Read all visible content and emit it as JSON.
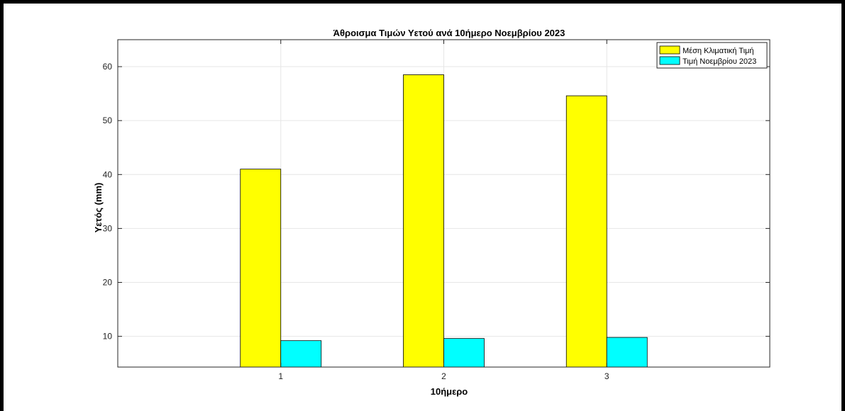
{
  "colors": {
    "series_1": "#ffff00",
    "series_2": "#00ffff",
    "bar_edge": "#000000",
    "grid": "#e6e6e6",
    "axis": "#262626"
  },
  "chart_data": {
    "type": "bar",
    "title": "Άθροισμα Τιμών Υετού ανά 10ήμερο Νοεμβρίου 2023",
    "xlabel": "10ήμερο",
    "ylabel": "Υετός (mm)",
    "categories": [
      "1",
      "2",
      "3"
    ],
    "series": [
      {
        "name": "Μέση Κλιματική Τιμή",
        "values": [
          41.0,
          58.5,
          54.6
        ]
      },
      {
        "name": "Τιμή Νοεμβρίου 2023",
        "values": [
          9.2,
          9.6,
          9.8
        ]
      }
    ],
    "ylim": [
      4.3,
      65
    ],
    "yticks": [
      10,
      20,
      30,
      40,
      50,
      60
    ],
    "xlim": [
      0,
      4
    ],
    "grid": true,
    "legend": "top-right"
  }
}
